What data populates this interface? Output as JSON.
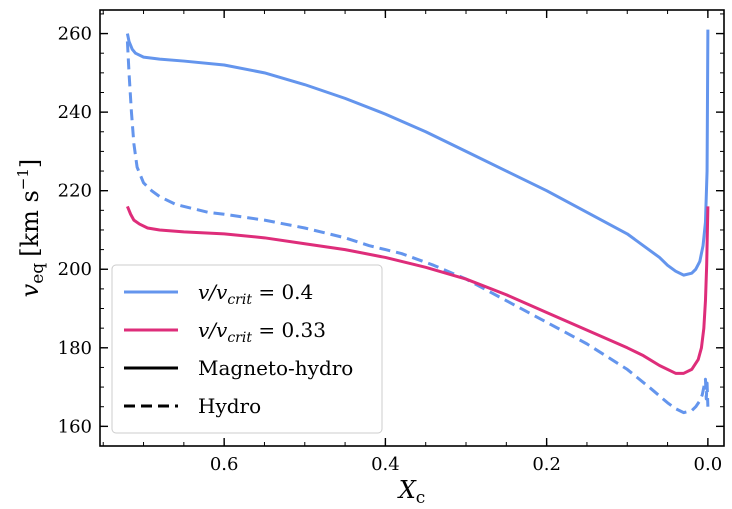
{
  "chart_data": {
    "type": "line",
    "xlabel": "X",
    "xlabel_sub": "c",
    "ylabel": "v",
    "ylabel_sub": "eq",
    "ylabel_units": "[km s",
    "ylabel_units_sup": "−1",
    "ylabel_units_close": "]",
    "xlim": [
      0.754,
      -0.02
    ],
    "ylim": [
      155,
      266
    ],
    "x_ticks": [
      0.6,
      0.4,
      0.2,
      0.0
    ],
    "x_tick_labels": [
      "0.6",
      "0.4",
      "0.2",
      "0.0"
    ],
    "y_ticks": [
      160,
      180,
      200,
      220,
      240,
      260
    ],
    "y_tick_labels": [
      "160",
      "180",
      "200",
      "220",
      "240",
      "260"
    ],
    "x_minor_step": 0.05,
    "y_minor_step": 5,
    "grid": false,
    "legend_position": "lower-left",
    "legend": [
      {
        "label": "v/v",
        "sub": "crit",
        "value_text": " = 0.4",
        "color": "#6495ed",
        "dash": "solid"
      },
      {
        "label": "v/v",
        "sub": "crit",
        "value_text": " = 0.33",
        "color": "#de2d7a",
        "dash": "solid"
      },
      {
        "label": "Magneto-hydro",
        "color": "#000000",
        "dash": "solid"
      },
      {
        "label": "Hydro",
        "color": "#000000",
        "dash": "dashed"
      }
    ],
    "series": [
      {
        "color": "#6495ed",
        "dash": "solid",
        "x": [
          0.72,
          0.718,
          0.714,
          0.71,
          0.7,
          0.68,
          0.65,
          0.6,
          0.55,
          0.5,
          0.45,
          0.4,
          0.35,
          0.3,
          0.25,
          0.2,
          0.15,
          0.1,
          0.08,
          0.06,
          0.05,
          0.04,
          0.03,
          0.02,
          0.015,
          0.01,
          0.006,
          0.003,
          0.001,
          0.0
        ],
        "y": [
          260,
          258,
          256,
          255,
          254,
          253.5,
          253,
          252,
          250,
          247,
          243.5,
          239.5,
          235,
          230,
          225,
          220,
          214.5,
          209,
          206,
          203,
          201,
          199.5,
          198.5,
          199,
          200,
          202,
          206,
          212,
          225,
          261
        ]
      },
      {
        "color": "#6495ed",
        "dash": "dashed",
        "x": [
          0.72,
          0.718,
          0.715,
          0.712,
          0.708,
          0.7,
          0.69,
          0.68,
          0.66,
          0.64,
          0.62,
          0.6,
          0.55,
          0.5,
          0.45,
          0.42,
          0.4,
          0.38,
          0.36,
          0.34,
          0.3,
          0.25,
          0.2,
          0.15,
          0.1,
          0.07,
          0.05,
          0.04,
          0.03,
          0.02,
          0.015,
          0.01,
          0.007,
          0.005,
          0.003,
          0.002,
          0.001,
          0.0
        ],
        "y": [
          258,
          250,
          240,
          232,
          226,
          222,
          220,
          218.5,
          216.5,
          215.5,
          214.5,
          214,
          212.5,
          210.5,
          208,
          206,
          205,
          204,
          202.5,
          201,
          197.5,
          192,
          186.5,
          181,
          174.5,
          169.5,
          166,
          164.5,
          163.5,
          164,
          165,
          166.5,
          168,
          170,
          172,
          167,
          171,
          165
        ]
      },
      {
        "color": "#de2d7a",
        "dash": "solid",
        "x": [
          0.72,
          0.716,
          0.712,
          0.705,
          0.695,
          0.68,
          0.65,
          0.6,
          0.55,
          0.5,
          0.45,
          0.4,
          0.35,
          0.3,
          0.25,
          0.2,
          0.15,
          0.1,
          0.08,
          0.06,
          0.04,
          0.03,
          0.02,
          0.012,
          0.008,
          0.005,
          0.003,
          0.0015,
          0.0
        ],
        "y": [
          216,
          214,
          212.5,
          211.5,
          210.5,
          210,
          209.5,
          209,
          208,
          206.5,
          205,
          203,
          200.5,
          197.5,
          193.5,
          189,
          184.5,
          180,
          178,
          175.5,
          173.5,
          173.5,
          174.5,
          177,
          180,
          185,
          192,
          201,
          216
        ]
      }
    ]
  }
}
